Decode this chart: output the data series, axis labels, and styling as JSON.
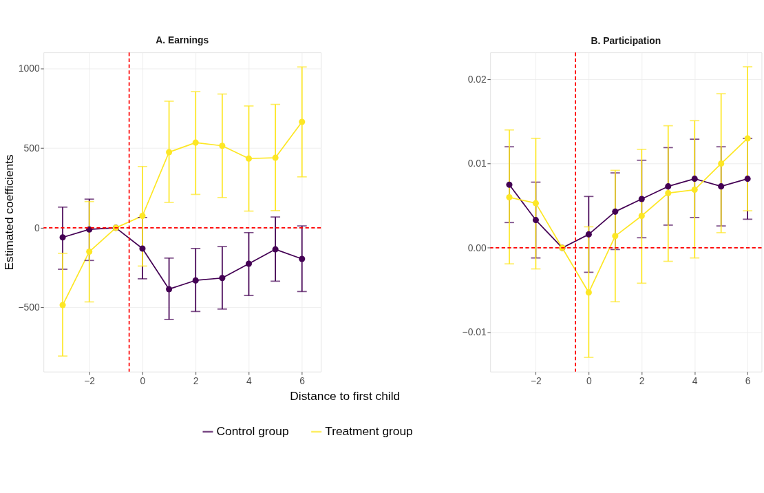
{
  "chart_data": [
    {
      "type": "line",
      "title": "A. Earnings",
      "xlabel": "Distance to first child",
      "ylabel": "Estimated coefficients",
      "x": [
        -3,
        -2,
        -1,
        0,
        1,
        2,
        3,
        4,
        5,
        6
      ],
      "xlim": [
        -3.72,
        6.71
      ],
      "xticks": [
        {
          "value": -2,
          "label": "−2"
        },
        0,
        2,
        4,
        6
      ],
      "ylim": [
        -903,
        1101
      ],
      "yticks": [
        {
          "value": -500,
          "label": "−500"
        },
        0,
        500,
        {
          "value": 1000,
          "label": "1000"
        }
      ],
      "grid": true,
      "marker": "circle",
      "legend": "bottom",
      "series": [
        {
          "name": "Control group",
          "color": "#440154",
          "values": [
            -60,
            -10,
            0,
            -130,
            -385,
            -330,
            -315,
            -225,
            -135,
            -195
          ],
          "errors": [
            [
              -260,
              130
            ],
            [
              -205,
              180
            ],
            null,
            [
              -320,
              65
            ],
            [
              -575,
              -190
            ],
            [
              -525,
              -130
            ],
            [
              -510,
              -118
            ],
            [
              -425,
              -30
            ],
            [
              -335,
              68
            ],
            [
              -400,
              12
            ]
          ]
        },
        {
          "name": "Treatment group",
          "color": "#fde725",
          "values": [
            -485,
            -150,
            0,
            75,
            475,
            535,
            515,
            435,
            440,
            665
          ],
          "errors": [
            [
              -805,
              -160
            ],
            [
              -465,
              165
            ],
            null,
            [
              -240,
              385
            ],
            [
              160,
              795
            ],
            [
              210,
              855
            ],
            [
              190,
              840
            ],
            [
              105,
              765
            ],
            [
              108,
              775
            ],
            [
              320,
              1010
            ]
          ]
        }
      ],
      "ref_lines": [
        {
          "axis": "x",
          "value": -0.5,
          "color": "#ff0000",
          "line_style": "dashed"
        },
        {
          "axis": "y",
          "value": 0,
          "color": "#ff0000",
          "line_style": "dashed"
        }
      ]
    },
    {
      "type": "line",
      "title": "B. Participation",
      "x": [
        -3,
        -2,
        -1,
        0,
        1,
        2,
        3,
        4,
        5,
        6
      ],
      "xlim": [
        -3.72,
        6.53
      ],
      "xticks": [
        {
          "value": -2,
          "label": "−2"
        },
        0,
        2,
        4,
        6
      ],
      "ylim": [
        -0.0147,
        0.0232
      ],
      "yticks": [
        {
          "value": -0.01,
          "label": "−0.01"
        },
        {
          "value": 0,
          "label": "0.00"
        },
        0.01,
        0.02
      ],
      "grid": true,
      "marker": "circle",
      "legend": "bottom",
      "series": [
        {
          "name": "Control group",
          "color": "#440154",
          "values": [
            0.0075,
            0.0033,
            0,
            0.0016,
            0.0043,
            0.0058,
            0.0073,
            0.0082,
            0.0073,
            0.0082
          ],
          "errors": [
            [
              0.003,
              0.012
            ],
            [
              -0.0012,
              0.0078
            ],
            null,
            [
              -0.0029,
              0.0061
            ],
            [
              -0.0002,
              0.0089
            ],
            [
              0.0012,
              0.0104
            ],
            [
              0.0027,
              0.0119
            ],
            [
              0.0036,
              0.0129
            ],
            [
              0.0026,
              0.012
            ],
            [
              0.0034,
              0.013
            ]
          ]
        },
        {
          "name": "Treatment group",
          "color": "#fde725",
          "values": [
            0.006,
            0.0053,
            0,
            -0.0053,
            0.0014,
            0.0038,
            0.0065,
            0.0069,
            0.01,
            0.013
          ],
          "errors": [
            [
              -0.0019,
              0.014
            ],
            [
              -0.0025,
              0.013
            ],
            null,
            [
              -0.013,
              0.0025
            ],
            [
              -0.0064,
              0.0092
            ],
            [
              -0.0042,
              0.0117
            ],
            [
              -0.0016,
              0.0145
            ],
            [
              -0.0012,
              0.0151
            ],
            [
              0.0018,
              0.0183
            ],
            [
              0.0044,
              0.0215
            ]
          ]
        }
      ],
      "ref_lines": [
        {
          "axis": "x",
          "value": -0.5,
          "color": "#ff0000",
          "line_style": "dashed"
        },
        {
          "axis": "y",
          "value": 0,
          "color": "#ff0000",
          "line_style": "dashed"
        }
      ]
    }
  ]
}
